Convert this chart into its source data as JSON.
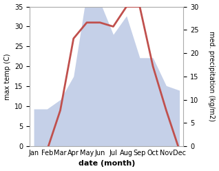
{
  "months": [
    "Jan",
    "Feb",
    "Mar",
    "Apr",
    "May",
    "Jun",
    "Jul",
    "Aug",
    "Sep",
    "Oct",
    "Nov",
    "Dec"
  ],
  "month_positions": [
    0,
    1,
    2,
    3,
    4,
    5,
    6,
    7,
    8,
    9,
    10,
    11
  ],
  "temperature": [
    -1,
    -1,
    9,
    27,
    31,
    31,
    30,
    35,
    35,
    20,
    9,
    -1
  ],
  "precipitation": [
    8,
    8,
    10,
    15,
    33,
    31,
    24,
    28,
    19,
    19,
    13,
    12
  ],
  "temp_color": "#c0504d",
  "precip_fill_color": "#c5d0e8",
  "background_color": "#ffffff",
  "xlabel": "date (month)",
  "ylabel_left": "max temp (C)",
  "ylabel_right": "med. precipitation (kg/m2)",
  "ylim_left": [
    0,
    35
  ],
  "ylim_right": [
    0,
    30
  ],
  "temp_lw": 2.0,
  "ylabel_fontsize": 7,
  "tick_fontsize": 7,
  "xlabel_fontsize": 8
}
